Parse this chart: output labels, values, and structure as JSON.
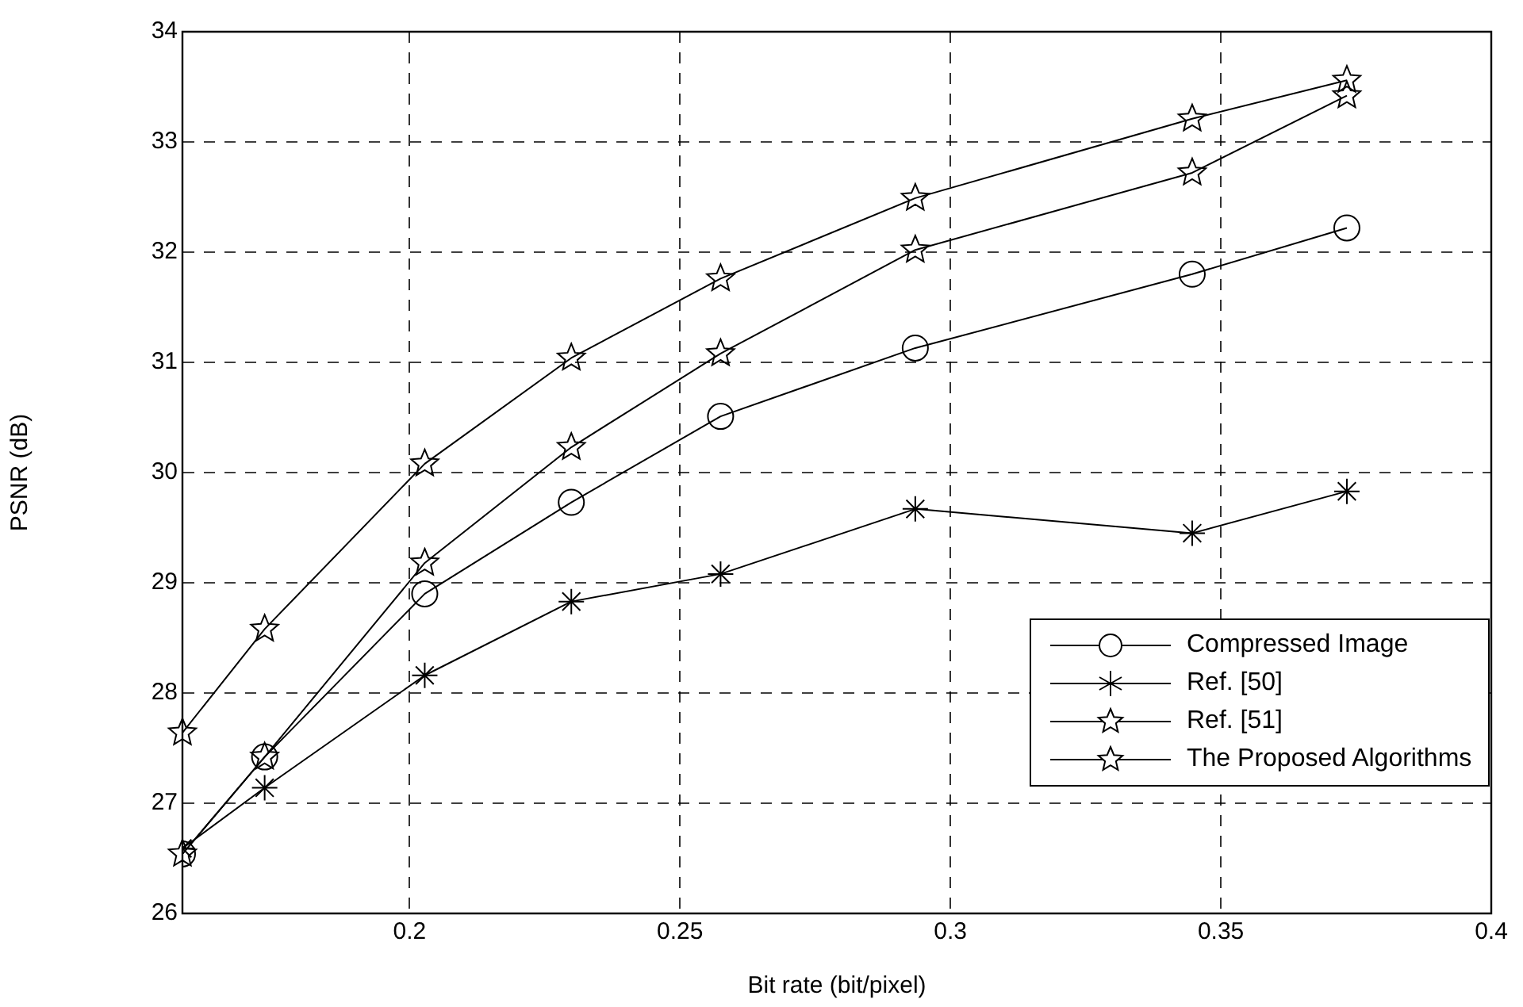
{
  "chart_data": {
    "type": "line",
    "xlabel": "Bit rate (bit/pixel)",
    "ylabel": "PSNR (dB)",
    "x": [
      0.158,
      0.1732,
      0.2028,
      0.2299,
      0.2575,
      0.2935,
      0.3447,
      0.3733
    ],
    "xlim": [
      0.158,
      0.4
    ],
    "xticks": [
      0.2,
      0.25,
      0.3,
      0.35,
      0.4
    ],
    "ylim": [
      26,
      34
    ],
    "yticks": [
      26,
      27,
      28,
      29,
      30,
      31,
      32,
      33,
      34
    ],
    "grid": true,
    "legend": "bottom right",
    "line_style": "solid",
    "series": [
      {
        "name": "Compressed Image",
        "color": "#000000",
        "marker": "circle",
        "values": [
          26.54,
          27.42,
          28.9,
          29.73,
          30.51,
          31.13,
          31.8,
          32.22
        ]
      },
      {
        "name": "Ref. [50]",
        "color": "#000000",
        "marker": "cross",
        "values": [
          26.59,
          27.14,
          28.16,
          28.83,
          29.08,
          29.67,
          29.45,
          29.83
        ]
      },
      {
        "name": "Ref. [51]",
        "color": "#000000",
        "marker": "star",
        "values": [
          26.54,
          27.42,
          29.18,
          30.23,
          31.08,
          32.02,
          32.72,
          33.42
        ]
      },
      {
        "name": "The Proposed Algorithms",
        "color": "#000000",
        "marker": "star",
        "values": [
          27.64,
          28.58,
          30.08,
          31.04,
          31.76,
          32.49,
          33.21,
          33.56
        ]
      }
    ]
  }
}
